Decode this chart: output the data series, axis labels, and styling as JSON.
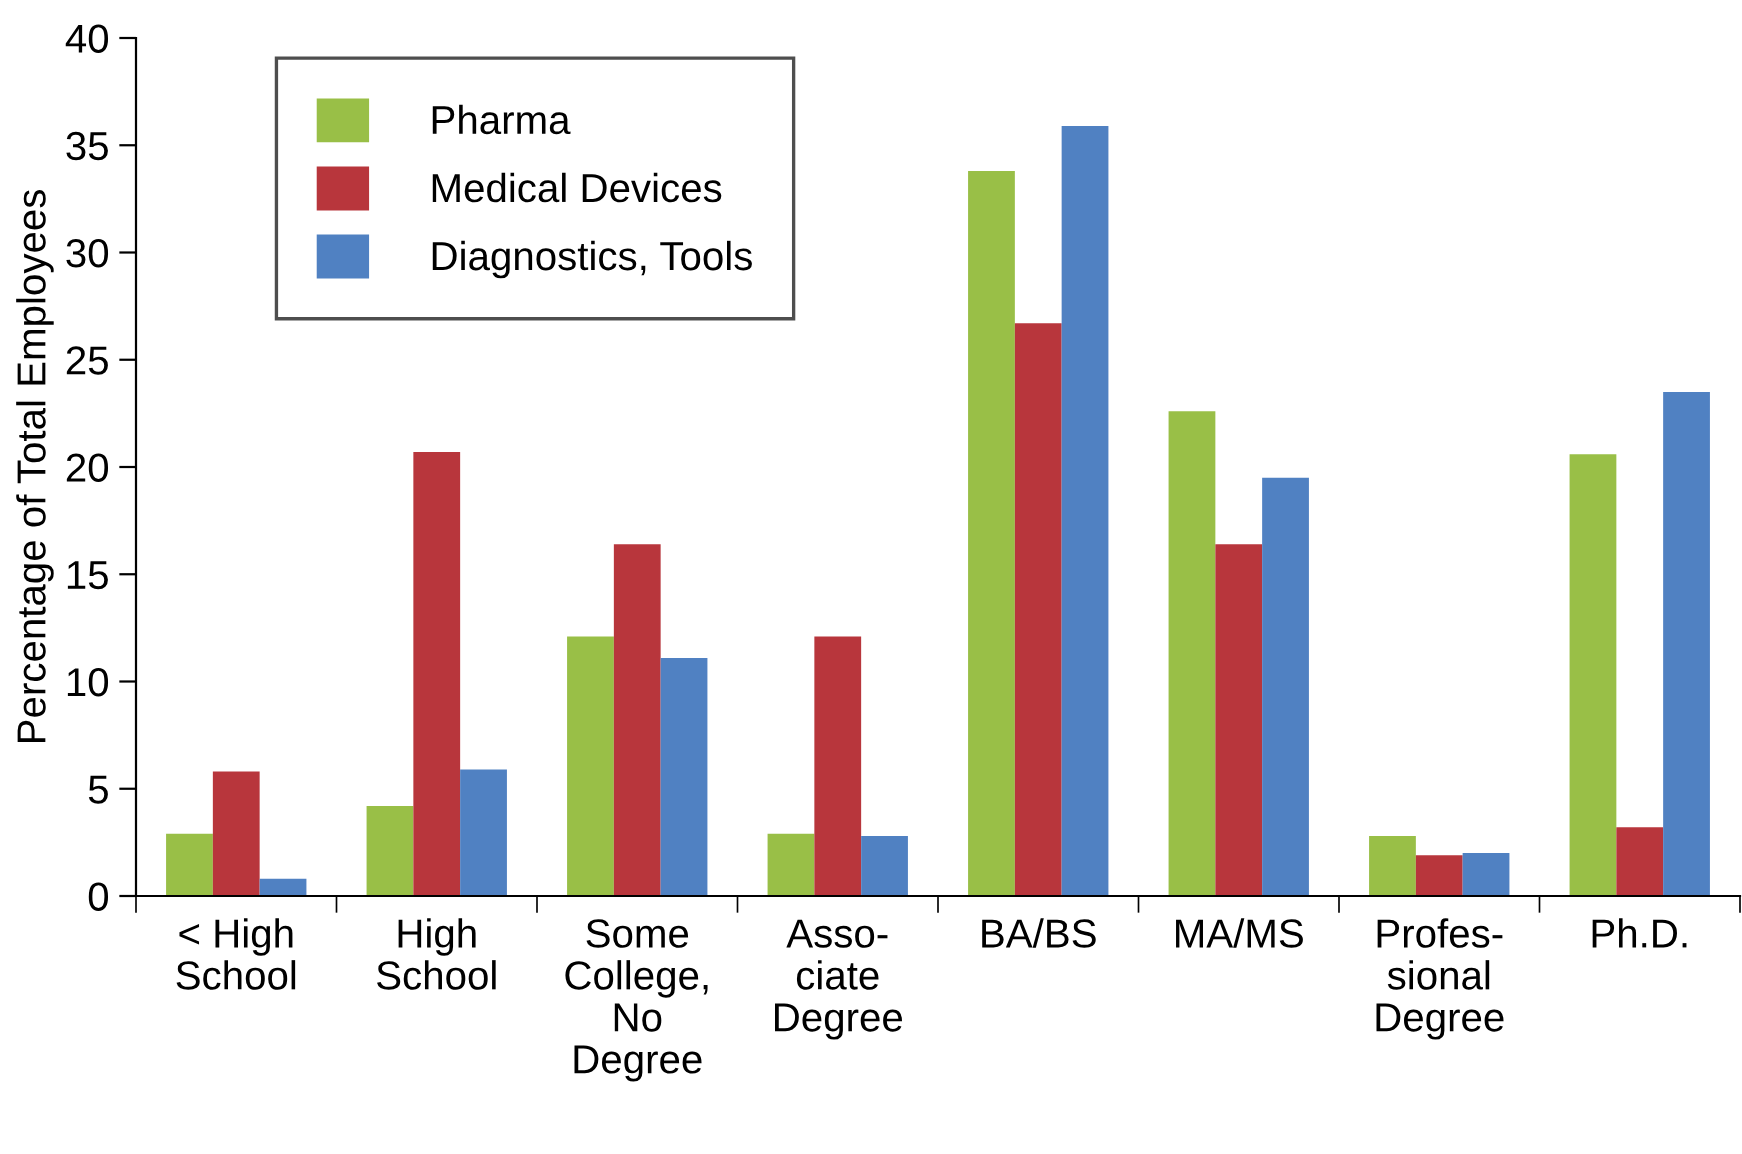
{
  "chart_data": {
    "type": "bar",
    "ylabel": "Percentage of Total Employees",
    "categories": [
      "< High\nSchool",
      "High\nSchool",
      "Some\nCollege,\nNo\nDegree",
      "Asso-\nciate\nDegree",
      "BA/BS",
      "MA/MS",
      "Profes-\nsional\nDegree",
      "Ph.D."
    ],
    "series": [
      {
        "name": "Pharma",
        "color": "#99bf47",
        "values": [
          2.9,
          4.2,
          12.1,
          2.9,
          33.8,
          22.6,
          2.8,
          20.6
        ]
      },
      {
        "name": "Medical Devices",
        "color": "#b8363c",
        "values": [
          5.8,
          20.7,
          16.4,
          12.1,
          26.7,
          16.4,
          1.9,
          3.2
        ]
      },
      {
        "name": "Diagnostics, Tools",
        "color": "#5081c2",
        "values": [
          0.8,
          5.9,
          11.1,
          2.8,
          35.9,
          19.5,
          2.0,
          23.5
        ]
      }
    ],
    "ylim": [
      0,
      40
    ],
    "yticks": [
      0,
      5,
      10,
      15,
      20,
      25,
      30,
      35,
      40
    ],
    "grid": false,
    "legend": "top left"
  }
}
